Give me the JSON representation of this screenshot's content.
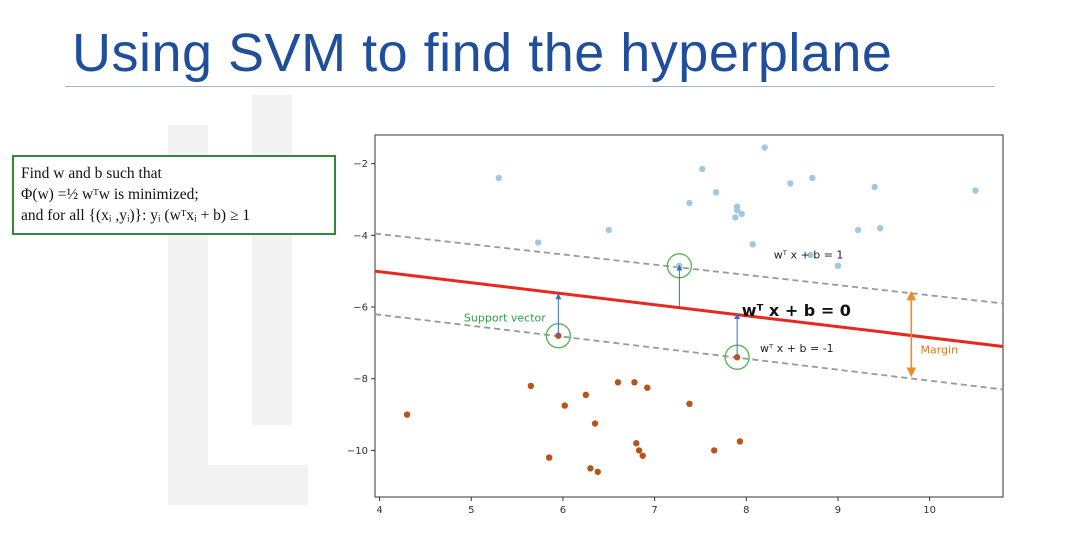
{
  "slide": {
    "title": "Using SVM to find the hyperplane"
  },
  "formula": {
    "line1": "Find w and b such that",
    "line2": "Φ(w) =½ wᵀw  is minimized;",
    "line3": "and for all {(xᵢ ,yᵢ)}: yᵢ (wᵀxᵢ + b) ≥ 1"
  },
  "colors": {
    "title": "#1f4e9c",
    "formula_border": "#2e8b3a",
    "class_positive": "#9ecae1",
    "class_negative": "#b5541c",
    "hyperplane": "#e8281c",
    "margin_lines": "#999999",
    "support_circle": "#5cb85c",
    "margin_arrow": "#f08a24",
    "normal_arrows": "#3a6fb7"
  },
  "chart_data": {
    "type": "scatter",
    "xlim": [
      3.95,
      10.8
    ],
    "ylim": [
      -11.3,
      -1.2
    ],
    "x_ticks": [
      4,
      5,
      6,
      7,
      8,
      9,
      10
    ],
    "y_ticks": [
      -2,
      -4,
      -6,
      -8,
      -10
    ],
    "x_tick_labels": [
      "4",
      "5",
      "6",
      "7",
      "8",
      "9",
      "10"
    ],
    "y_tick_labels": [
      "−2",
      "−4",
      "−6",
      "−8",
      "−10"
    ],
    "grid": false,
    "series": [
      {
        "class": "positive",
        "x": [
          5.3,
          5.73,
          6.5,
          7.38,
          7.52,
          7.67,
          7.88,
          7.9,
          7.9,
          7.95,
          8.07,
          8.2,
          8.48,
          8.72,
          8.7,
          9.0,
          9.22,
          9.4,
          9.46,
          10.5
        ],
        "y": [
          -2.4,
          -4.2,
          -3.85,
          -3.1,
          -2.15,
          -2.8,
          -3.5,
          -3.3,
          -3.2,
          -3.4,
          -4.25,
          -1.55,
          -2.55,
          -2.4,
          -4.55,
          -4.85,
          -3.85,
          -2.65,
          -3.8,
          -2.75
        ]
      },
      {
        "class": "negative",
        "x": [
          4.3,
          5.65,
          5.85,
          6.02,
          6.25,
          6.3,
          6.35,
          6.38,
          6.6,
          6.78,
          6.8,
          6.83,
          6.87,
          6.92,
          7.38,
          7.65,
          7.93
        ],
        "y": [
          -9.0,
          -8.2,
          -10.2,
          -8.75,
          -8.45,
          -10.5,
          -9.25,
          -10.6,
          -8.1,
          -8.1,
          -9.8,
          -10.0,
          -10.15,
          -8.25,
          -8.7,
          -10.0,
          -9.75
        ]
      },
      {
        "class": "support-vectors",
        "x": [
          7.27,
          5.95,
          7.9
        ],
        "y": [
          -4.85,
          -6.8,
          -7.4
        ]
      }
    ],
    "lines": [
      {
        "label": "wᵀ x + b = 0",
        "x": [
          3.95,
          10.8
        ],
        "y": [
          -5.0,
          -7.1
        ]
      },
      {
        "label": "wᵀ x + b = 1",
        "x": [
          3.95,
          10.8
        ],
        "y": [
          -3.95,
          -5.9
        ]
      },
      {
        "label": "wᵀ x + b = -1",
        "x": [
          3.95,
          10.8
        ],
        "y": [
          -6.2,
          -8.3
        ]
      }
    ],
    "annotations": {
      "hyperplane_label": "wᵀ x + b = 0",
      "upper_label": "wᵀ x + b = 1",
      "lower_label": "wᵀ x + b = -1",
      "support_label": "Support vector",
      "margin_label": "Margin"
    },
    "arrows": [
      {
        "role": "normal",
        "from": [
          7.27,
          -6.0
        ],
        "to": [
          7.27,
          -4.85
        ]
      },
      {
        "role": "normal",
        "from": [
          5.95,
          -6.8
        ],
        "to": [
          5.95,
          -5.65
        ]
      },
      {
        "role": "normal",
        "from": [
          7.9,
          -7.35
        ],
        "to": [
          7.9,
          -6.2
        ]
      },
      {
        "role": "margin",
        "from": [
          9.8,
          -5.6
        ],
        "to": [
          9.8,
          -7.9
        ]
      }
    ]
  }
}
